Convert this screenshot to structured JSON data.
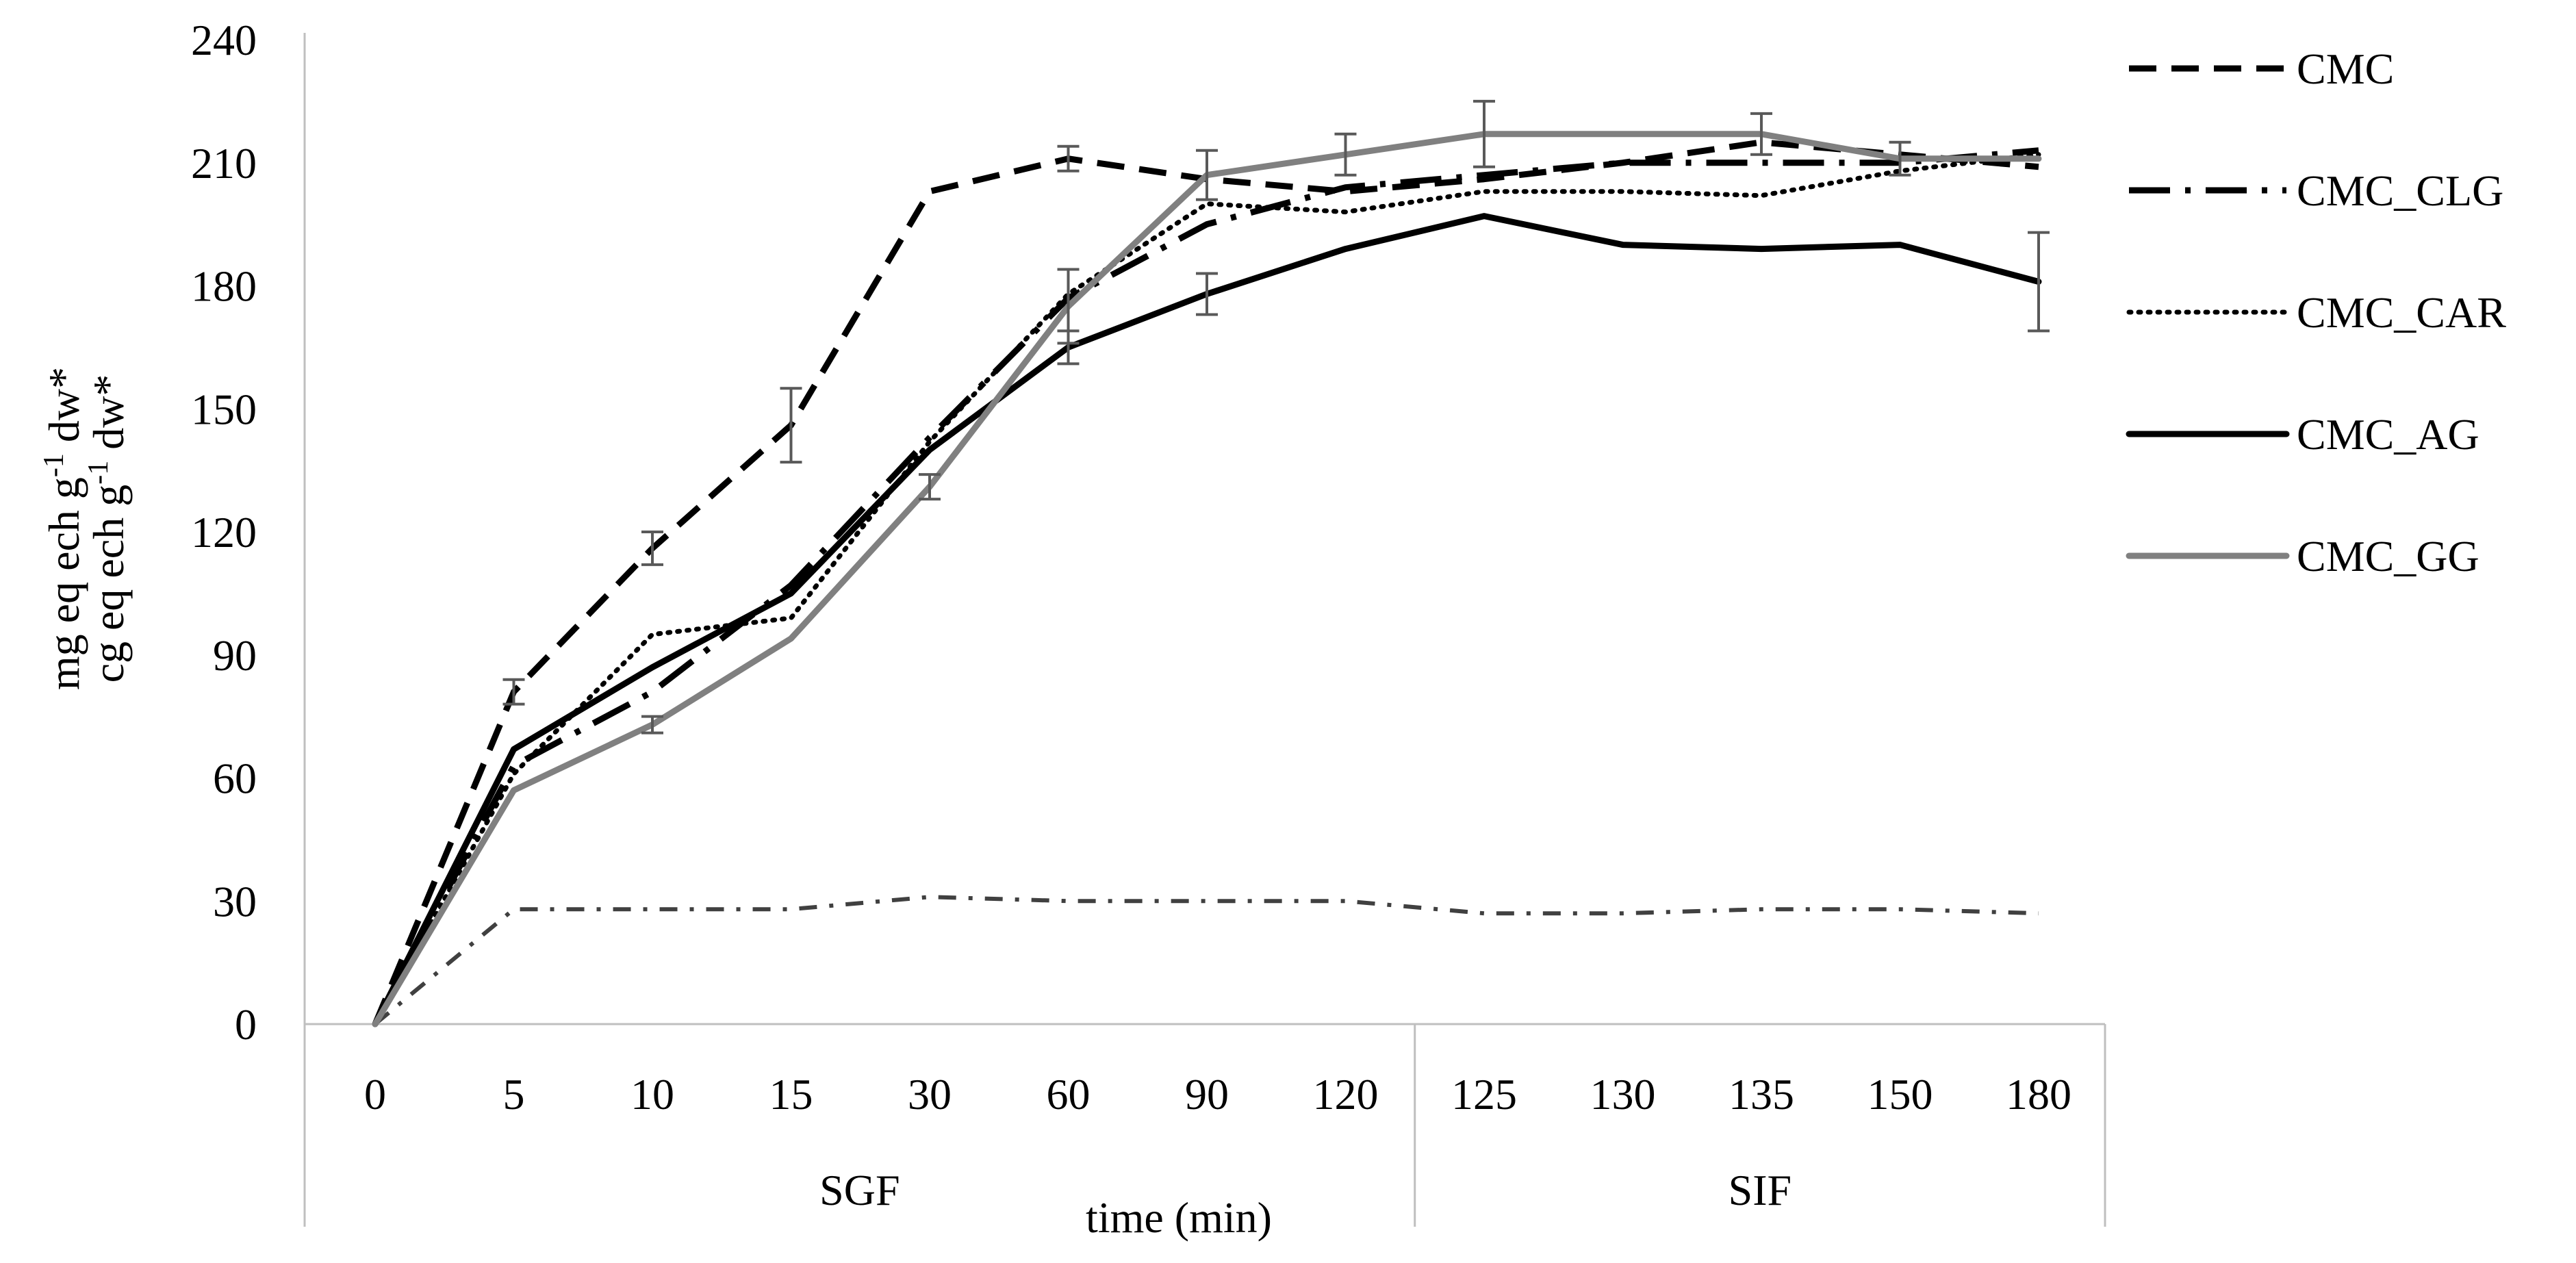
{
  "chart_data": {
    "type": "line",
    "title": "",
    "xlabel": "time (min)",
    "ylabel_lines": [
      "mg eq ech g",
      "-1",
      " dw*",
      "cg eq ech g",
      "-1",
      " dw*"
    ],
    "ylim": [
      0,
      240
    ],
    "yticks": [
      "0",
      "30",
      "60",
      "90",
      "120",
      "150",
      "180",
      "210",
      "240"
    ],
    "categories": [
      "0",
      "5",
      "10",
      "15",
      "30",
      "60",
      "90",
      "120",
      "125",
      "130",
      "135",
      "150",
      "180"
    ],
    "groups": [
      {
        "label": "SGF",
        "from": 0,
        "to": 7
      },
      {
        "label": "SIF",
        "from": 8,
        "to": 12
      }
    ],
    "legend_position": "right",
    "series": [
      {
        "name": "CMC",
        "color": "#000000",
        "style": "dash",
        "values": [
          0,
          81,
          116,
          146,
          203,
          211,
          206,
          203,
          206,
          210,
          215,
          212,
          209
        ],
        "errors": [
          0,
          3,
          4,
          9,
          0,
          3,
          0,
          0,
          0,
          0,
          0,
          0,
          0
        ]
      },
      {
        "name": "CMC_CLG",
        "color": "#000000",
        "style": "dashdot",
        "values": [
          0,
          63,
          81,
          107,
          143,
          177,
          195,
          204,
          207,
          210,
          210,
          210,
          213
        ],
        "errors": [
          0,
          0,
          0,
          0,
          0,
          0,
          0,
          0,
          0,
          0,
          0,
          0,
          0
        ]
      },
      {
        "name": "CMC_CLG",
        "color": "#404040",
        "style": "dashdot-thin",
        "legend": false,
        "values": [
          0,
          28,
          28,
          28,
          31,
          30,
          30,
          30,
          27,
          27,
          28,
          28,
          27
        ],
        "errors": [
          0,
          0,
          0,
          0,
          0,
          0,
          0,
          0,
          0,
          0,
          0,
          0,
          0
        ]
      },
      {
        "name": "CMC_CAR",
        "color": "#000000",
        "style": "dot",
        "values": [
          0,
          61,
          95,
          99,
          142,
          178,
          200,
          198,
          203,
          203,
          202,
          208,
          212
        ],
        "errors": [
          0,
          0,
          0,
          0,
          0,
          0,
          0,
          0,
          0,
          0,
          0,
          0,
          0
        ]
      },
      {
        "name": "CMC_AG",
        "color": "#000000",
        "style": "solid",
        "values": [
          0,
          67,
          87,
          105,
          140,
          165,
          178,
          189,
          197,
          190,
          189,
          190,
          181
        ],
        "errors": [
          0,
          0,
          0,
          0,
          0,
          4,
          5,
          0,
          0,
          0,
          0,
          0,
          12
        ]
      },
      {
        "name": "CMC_GG",
        "color": "#808080",
        "style": "solid",
        "values": [
          0,
          57,
          73,
          94,
          131,
          175,
          207,
          212,
          217,
          217,
          217,
          211,
          211
        ],
        "errors": [
          0,
          0,
          2,
          0,
          3,
          9,
          6,
          5,
          8,
          0,
          5,
          4,
          0
        ]
      }
    ]
  }
}
